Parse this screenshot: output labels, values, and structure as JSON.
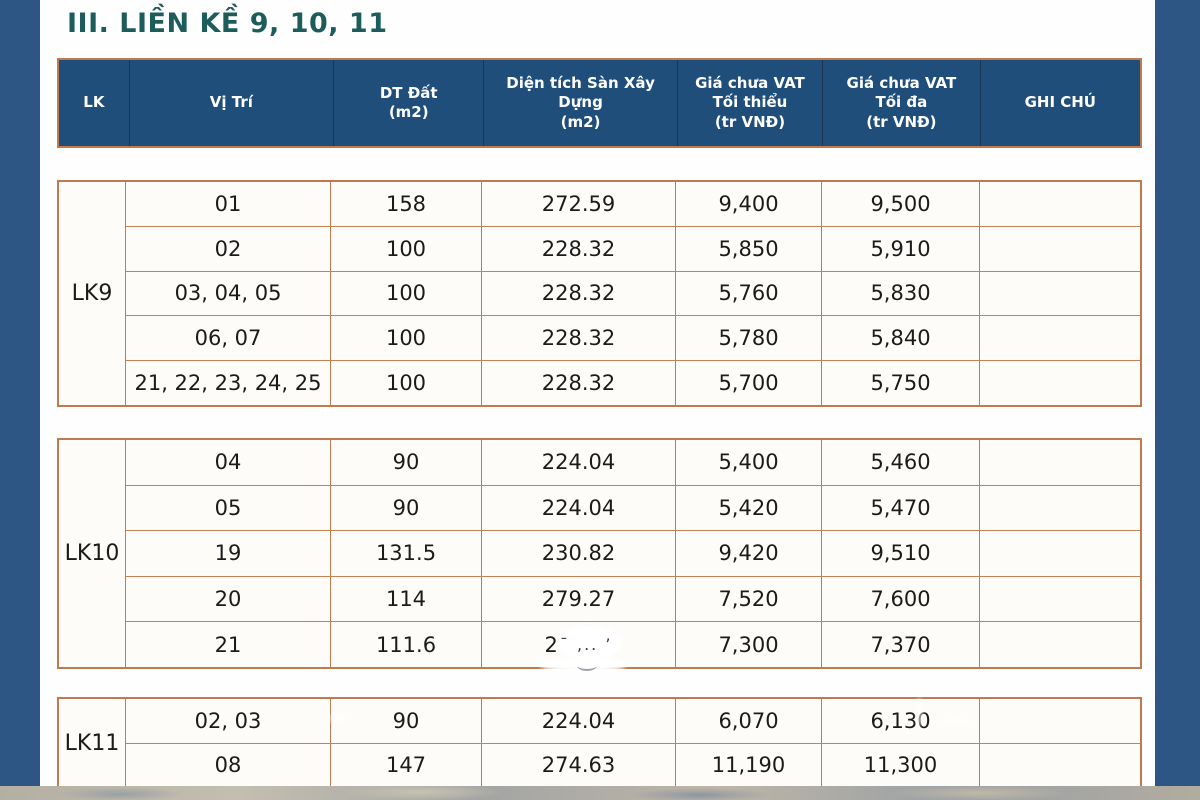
{
  "page": {
    "title": "III. LIỀN KỀ 9, 10, 11"
  },
  "colors": {
    "sidebar_blue": "#2d5685",
    "header_blue": "#1f4e7b",
    "table_border_orange": "#c1794e",
    "title_teal": "#1c5d5b"
  },
  "table": {
    "headers": [
      {
        "lines": [
          "LK"
        ]
      },
      {
        "lines": [
          "Vị Trí"
        ]
      },
      {
        "lines": [
          "DT Đất",
          "(m2)"
        ]
      },
      {
        "lines": [
          "Diện tích Sàn Xây",
          "Dựng",
          "(m2)"
        ]
      },
      {
        "lines": [
          "Giá chưa VAT",
          "Tối thiểu",
          "(tr VNĐ)"
        ]
      },
      {
        "lines": [
          "Giá chưa VAT",
          "Tối đa",
          "(tr VNĐ)"
        ]
      },
      {
        "lines": [
          "GHI CHÚ"
        ]
      }
    ],
    "sections": [
      {
        "group": "LK9",
        "rows": [
          {
            "vi_tri": "01",
            "dt_dat": "158",
            "dien_tich_san": "272.59",
            "gia_min": "9,400",
            "gia_max": "9,500",
            "ghi_chu": ""
          },
          {
            "vi_tri": "02",
            "dt_dat": "100",
            "dien_tich_san": "228.32",
            "gia_min": "5,850",
            "gia_max": "5,910",
            "ghi_chu": ""
          },
          {
            "vi_tri": "03, 04, 05",
            "dt_dat": "100",
            "dien_tich_san": "228.32",
            "gia_min": "5,760",
            "gia_max": "5,830",
            "ghi_chu": ""
          },
          {
            "vi_tri": "06, 07",
            "dt_dat": "100",
            "dien_tich_san": "228.32",
            "gia_min": "5,780",
            "gia_max": "5,840",
            "ghi_chu": ""
          },
          {
            "vi_tri": "21, 22, 23, 24, 25",
            "dt_dat": "100",
            "dien_tich_san": "228.32",
            "gia_min": "5,700",
            "gia_max": "5,750",
            "ghi_chu": ""
          }
        ]
      },
      {
        "group": "LK10",
        "rows": [
          {
            "vi_tri": "04",
            "dt_dat": "90",
            "dien_tich_san": "224.04",
            "gia_min": "5,400",
            "gia_max": "5,460",
            "ghi_chu": ""
          },
          {
            "vi_tri": "05",
            "dt_dat": "90",
            "dien_tich_san": "224.04",
            "gia_min": "5,420",
            "gia_max": "5,470",
            "ghi_chu": ""
          },
          {
            "vi_tri": "19",
            "dt_dat": "131.5",
            "dien_tich_san": "230.82",
            "gia_min": "9,420",
            "gia_max": "9,510",
            "ghi_chu": ""
          },
          {
            "vi_tri": "20",
            "dt_dat": "114",
            "dien_tich_san": "279.27",
            "gia_min": "7,520",
            "gia_max": "7,600",
            "ghi_chu": ""
          },
          {
            "vi_tri": "21",
            "dt_dat": "111.6",
            "dien_tich_san": "2",
            "obscured_marks": "¯ ,.. ’",
            "gia_min": "7,300",
            "gia_max": "7,370",
            "ghi_chu": ""
          }
        ]
      },
      {
        "group": "LK11",
        "rows": [
          {
            "vi_tri": "02, 03",
            "dt_dat": "90",
            "dien_tich_san": "224.04",
            "gia_min": "6,070",
            "gia_max": "6,130",
            "ghi_chu": ""
          },
          {
            "vi_tri": "08",
            "dt_dat": "147",
            "dien_tich_san": "274.63",
            "gia_min": "11,190",
            "gia_max": "11,300",
            "ghi_chu": ""
          }
        ]
      }
    ]
  }
}
